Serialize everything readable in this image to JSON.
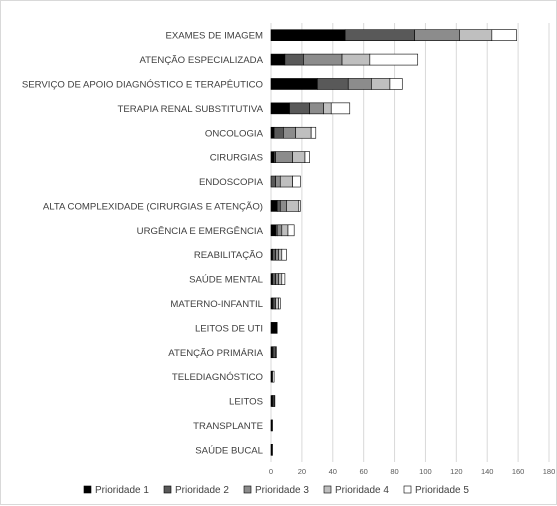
{
  "chart_data": {
    "type": "bar",
    "orientation": "horizontal",
    "stacked": true,
    "title": "",
    "xlabel": "",
    "ylabel": "",
    "xlim": [
      0,
      180
    ],
    "xticks": [
      0,
      20,
      40,
      60,
      80,
      100,
      120,
      140,
      160,
      180
    ],
    "grid": "vertical",
    "legend_position": "bottom",
    "categories": [
      "EXAMES DE IMAGEM",
      "ATENÇÃO ESPECIALIZADA",
      "SERVIÇO DE APOIO DIAGNÓSTICO E TERAPÊUTICO",
      "TERAPIA RENAL SUBSTITUTIVA",
      "ONCOLOGIA",
      "CIRURGIAS",
      "ENDOSCOPIA",
      "ALTA COMPLEXIDADE (CIRURGIAS E ATENÇÃO)",
      "URGÊNCIA E EMERGÊNCIA",
      "REABILITAÇÃO",
      "SAÚDE MENTAL",
      "MATERNO-INFANTIL",
      "LEITOS DE UTI",
      "ATENÇÃO PRIMÁRIA",
      "TELEDIAGNÓSTICO",
      "LEITOS",
      "TRANSPLANTE",
      "SAÚDE BUCAL"
    ],
    "series": [
      {
        "name": "Prioridade 1",
        "color": "#000000",
        "values": [
          48,
          9,
          30,
          12,
          2,
          2,
          0,
          4,
          3,
          1,
          1,
          1,
          4,
          1,
          1,
          1,
          0.5,
          0.5
        ]
      },
      {
        "name": "Prioridade 2",
        "color": "#595959",
        "values": [
          45,
          12,
          20,
          13,
          6,
          1,
          3,
          2,
          1,
          2,
          2,
          1,
          0,
          1,
          0,
          1,
          0.5,
          0.3
        ]
      },
      {
        "name": "Prioridade 3",
        "color": "#8c8c8c",
        "values": [
          29,
          25,
          15,
          9,
          8,
          11,
          3,
          4,
          3,
          2,
          2,
          1,
          0,
          1,
          0,
          0.5,
          0,
          0
        ]
      },
      {
        "name": "Prioridade 4",
        "color": "#bfbfbf",
        "values": [
          21,
          18,
          12,
          5,
          10,
          8,
          8,
          8,
          4,
          2,
          2,
          2,
          0,
          0.5,
          0,
          0,
          0,
          0
        ]
      },
      {
        "name": "Prioridade 5",
        "color": "#ffffff",
        "values": [
          16,
          31,
          8,
          12,
          3,
          3,
          5,
          1,
          4,
          3,
          2,
          1,
          0,
          0,
          1,
          0,
          0,
          0
        ]
      }
    ]
  }
}
